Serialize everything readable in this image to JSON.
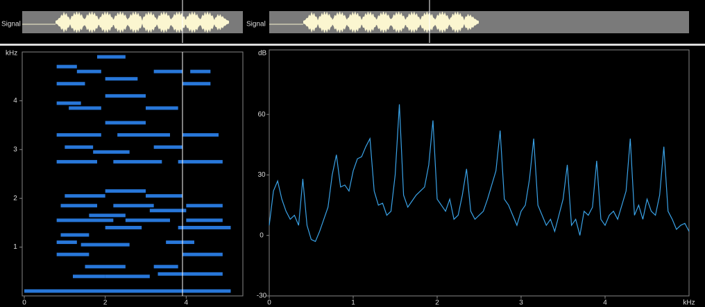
{
  "waveform": {
    "label": "Signal"
  },
  "waveform_zoom": {
    "label": "Signal"
  },
  "chart_data": [
    {
      "type": "spectrogram",
      "y_label": "kHz",
      "color": "#2f8cff",
      "xlim": [
        0,
        5.4
      ],
      "xticks": [
        0,
        2,
        4
      ],
      "ylim": [
        0,
        5
      ],
      "yticks": [
        1,
        2,
        3,
        4
      ],
      "streaks": {
        "x_start": [
          0.0,
          1.2,
          2.0,
          3.3,
          1.5,
          3.2,
          0.8,
          3.9,
          1.4,
          0.8,
          3.5,
          0.9,
          2.0,
          3.8,
          0.8,
          2.5,
          4.0,
          1.6,
          3.1,
          0.9,
          2.2,
          4.0,
          1.0,
          3.0,
          2.0,
          0.8,
          2.2,
          3.8,
          1.7,
          1.0,
          3.2,
          0.8,
          2.3,
          3.9,
          2.0,
          1.1,
          3.0,
          0.8,
          2.0,
          0.8,
          3.9,
          2.0,
          1.3,
          3.2,
          4.1,
          0.8,
          1.8
        ],
        "x_end": [
          5.1,
          2.0,
          3.1,
          4.9,
          2.5,
          3.8,
          1.6,
          4.9,
          2.6,
          1.3,
          4.2,
          1.6,
          2.9,
          5.1,
          2.2,
          3.6,
          4.9,
          2.5,
          4.0,
          1.8,
          3.2,
          4.9,
          2.0,
          3.9,
          3.0,
          1.8,
          3.4,
          4.9,
          2.6,
          1.7,
          3.9,
          1.9,
          3.6,
          4.8,
          3.0,
          1.9,
          3.8,
          1.4,
          3.0,
          1.5,
          4.6,
          2.8,
          1.9,
          3.9,
          4.6,
          1.3,
          2.5
        ],
        "y": [
          0.1,
          0.4,
          0.4,
          0.45,
          0.6,
          0.6,
          0.85,
          0.85,
          1.05,
          1.1,
          1.1,
          1.25,
          1.4,
          1.4,
          1.55,
          1.55,
          1.55,
          1.65,
          1.75,
          1.85,
          1.85,
          1.85,
          2.05,
          2.05,
          2.15,
          2.75,
          2.75,
          2.75,
          2.95,
          3.05,
          3.05,
          3.3,
          3.3,
          3.3,
          3.55,
          3.85,
          3.85,
          3.95,
          4.1,
          4.35,
          4.35,
          4.45,
          4.6,
          4.6,
          4.6,
          4.7,
          4.9
        ]
      }
    },
    {
      "type": "line",
      "x_label": "kHz",
      "y_label": "dB",
      "xlim": [
        0,
        5
      ],
      "xticks": [
        0,
        1,
        2,
        3,
        4
      ],
      "ylim": [
        -30,
        92
      ],
      "yticks": [
        -30,
        0,
        30,
        60
      ],
      "x": [
        0,
        0.05,
        0.1,
        0.15,
        0.2,
        0.25,
        0.3,
        0.35,
        0.4,
        0.45,
        0.5,
        0.55,
        0.6,
        0.65,
        0.7,
        0.75,
        0.8,
        0.85,
        0.9,
        0.95,
        1,
        1.05,
        1.1,
        1.15,
        1.2,
        1.25,
        1.3,
        1.35,
        1.4,
        1.45,
        1.5,
        1.55,
        1.6,
        1.65,
        1.7,
        1.75,
        1.8,
        1.85,
        1.9,
        1.95,
        2,
        2.05,
        2.1,
        2.15,
        2.2,
        2.25,
        2.3,
        2.35,
        2.4,
        2.45,
        2.5,
        2.55,
        2.6,
        2.65,
        2.7,
        2.75,
        2.8,
        2.85,
        2.9,
        2.95,
        3,
        3.05,
        3.1,
        3.15,
        3.2,
        3.25,
        3.3,
        3.35,
        3.4,
        3.45,
        3.5,
        3.55,
        3.6,
        3.65,
        3.7,
        3.75,
        3.8,
        3.85,
        3.9,
        3.95,
        4,
        4.05,
        4.1,
        4.15,
        4.2,
        4.25,
        4.3,
        4.35,
        4.4,
        4.45,
        4.5,
        4.55,
        4.6,
        4.65,
        4.7,
        4.75,
        4.8,
        4.85,
        4.9,
        4.95,
        5
      ],
      "series": [
        {
          "color": "#3aa3e8",
          "values": [
            5,
            22,
            27,
            18,
            12,
            8,
            10,
            5,
            28,
            5,
            -2,
            -3,
            2,
            8,
            14,
            30,
            40,
            24,
            25,
            22,
            32,
            38,
            39,
            44,
            48,
            22,
            15,
            16,
            10,
            12,
            30,
            65,
            20,
            14,
            17,
            20,
            22,
            24,
            35,
            57,
            18,
            15,
            12,
            18,
            8,
            10,
            20,
            33,
            12,
            8,
            10,
            12,
            18,
            25,
            32,
            52,
            18,
            15,
            10,
            5,
            12,
            15,
            28,
            48,
            15,
            10,
            5,
            8,
            2,
            10,
            18,
            35,
            5,
            8,
            0,
            12,
            10,
            14,
            37,
            8,
            5,
            10,
            12,
            8,
            15,
            22,
            48,
            10,
            15,
            8,
            18,
            12,
            10,
            20,
            44,
            12,
            8,
            3,
            5,
            6,
            2
          ]
        }
      ]
    }
  ]
}
